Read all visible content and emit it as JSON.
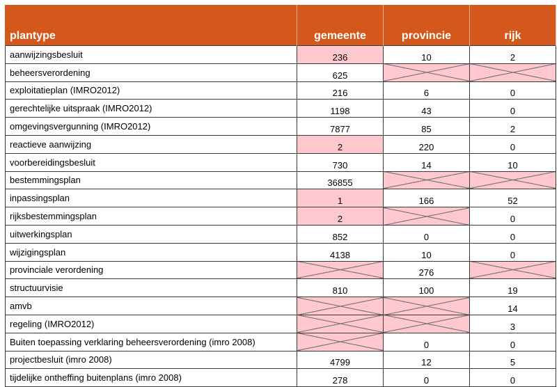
{
  "header": {
    "plantype": "plantype",
    "gemeente": "gemeente",
    "provincie": "provincie",
    "rijk": "rijk"
  },
  "colors": {
    "header_bg": "#d4581b",
    "highlight": "#ffc7ce",
    "cross_line": "#7a7a7a"
  },
  "rows": [
    {
      "label": "aanwijzingsbesluit",
      "gemeente": "236",
      "provincie": "10",
      "rijk": "2"
    },
    {
      "label": "beheersverordening",
      "gemeente": "625",
      "provincie": "",
      "rijk": ""
    },
    {
      "label": "exploitatieplan (IMRO2012)",
      "gemeente": "216",
      "provincie": "6",
      "rijk": "0"
    },
    {
      "label": "gerechtelijke uitspraak (IMRO2012)",
      "gemeente": "1198",
      "provincie": "43",
      "rijk": "0"
    },
    {
      "label": "omgevingsvergunning (IMRO2012)",
      "gemeente": "7877",
      "provincie": "85",
      "rijk": "2"
    },
    {
      "label": "reactieve aanwijzing",
      "gemeente": "2",
      "provincie": "220",
      "rijk": "0"
    },
    {
      "label": "voorbereidingsbesluit",
      "gemeente": "730",
      "provincie": "14",
      "rijk": "10"
    },
    {
      "label": "bestemmingsplan",
      "gemeente": "36855",
      "provincie": "",
      "rijk": ""
    },
    {
      "label": "inpassingsplan",
      "gemeente": "1",
      "provincie": "166",
      "rijk": "52"
    },
    {
      "label": "rijksbestemmingsplan",
      "gemeente": "2",
      "provincie": "",
      "rijk": "0"
    },
    {
      "label": "uitwerkingsplan",
      "gemeente": "852",
      "provincie": "0",
      "rijk": "0"
    },
    {
      "label": "wijzigingsplan",
      "gemeente": "4138",
      "provincie": "10",
      "rijk": "0"
    },
    {
      "label": "provinciale verordening",
      "gemeente": "",
      "provincie": "276",
      "rijk": ""
    },
    {
      "label": "structuurvisie",
      "gemeente": "810",
      "provincie": "100",
      "rijk": "19"
    },
    {
      "label": "amvb",
      "gemeente": "",
      "provincie": "",
      "rijk": "14"
    },
    {
      "label": "regeling (IMRO2012)",
      "gemeente": "",
      "provincie": "",
      "rijk": "3"
    },
    {
      "label": "Buiten toepassing verklaring beheersverordening (imro 2008)",
      "gemeente": "",
      "provincie": "0",
      "rijk": "0"
    },
    {
      "label": "projectbesluit (imro 2008)",
      "gemeente": "4799",
      "provincie": "12",
      "rijk": "5"
    },
    {
      "label": "tijdelijke ontheffing buitenplans (imro 2008)",
      "gemeente": "278",
      "provincie": "0",
      "rijk": "0"
    }
  ]
}
